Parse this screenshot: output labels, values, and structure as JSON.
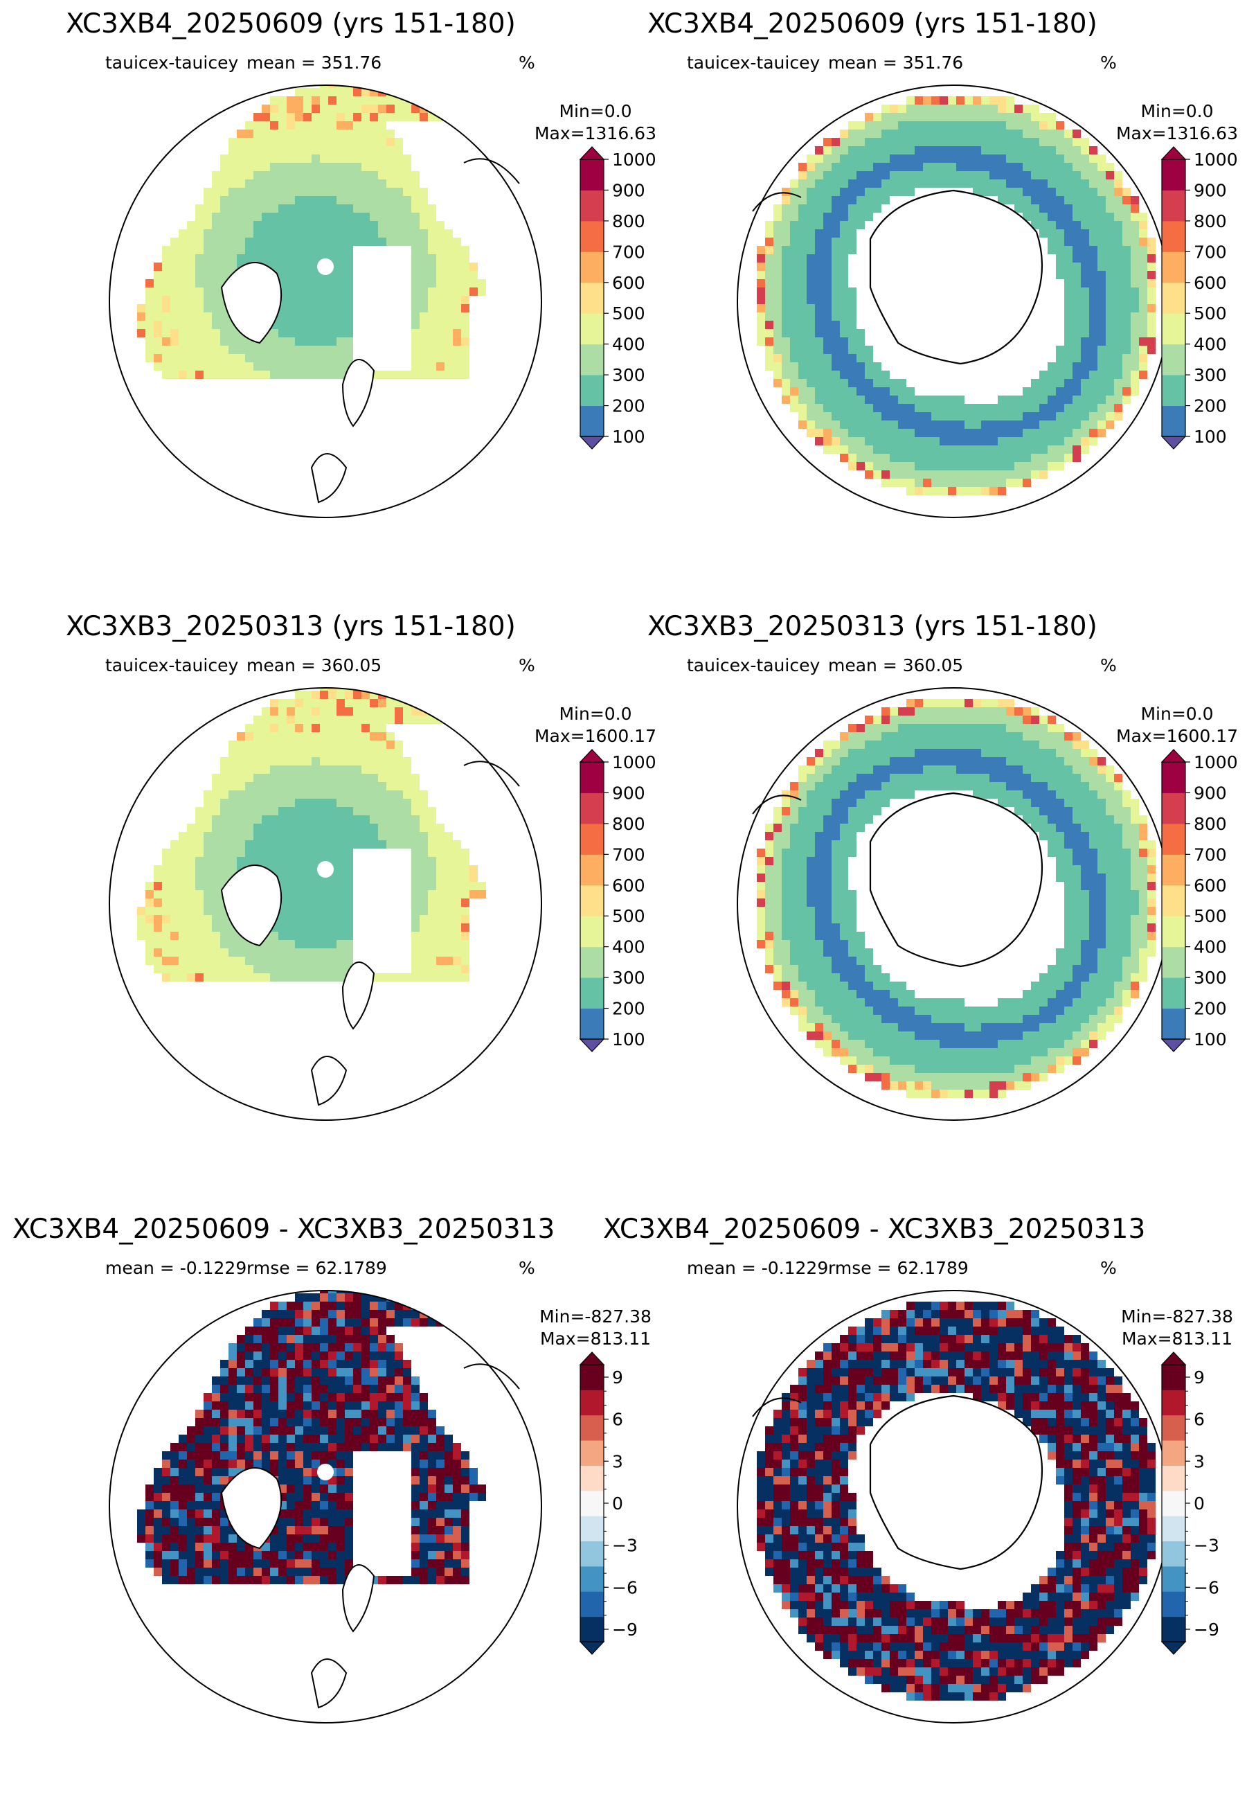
{
  "panels": [
    {
      "title": "XC3XB4_20250609 (yrs 151-180)",
      "left_label": "tauicex-tauicey",
      "stat_label": "mean = 351.76",
      "units": "%",
      "min_label": "Min=0.0",
      "max_label": "Max=1316.63",
      "hemisphere": "north",
      "colormap": "RdYlBu_r-diverging-discrete",
      "colorbar_ticks": [
        "1000",
        "900",
        "800",
        "700",
        "600",
        "500",
        "400",
        "300",
        "200",
        "100"
      ]
    },
    {
      "title": "XC3XB4_20250609 (yrs 151-180)",
      "left_label": "tauicex-tauicey",
      "stat_label": "mean = 351.76",
      "units": "%",
      "min_label": "Min=0.0",
      "max_label": "Max=1316.63",
      "hemisphere": "south",
      "colormap": "RdYlBu_r-diverging-discrete",
      "colorbar_ticks": [
        "1000",
        "900",
        "800",
        "700",
        "600",
        "500",
        "400",
        "300",
        "200",
        "100"
      ]
    },
    {
      "title": "XC3XB3_20250313 (yrs 151-180)",
      "left_label": "tauicex-tauicey",
      "stat_label": "mean = 360.05",
      "units": "%",
      "min_label": "Min=0.0",
      "max_label": "Max=1600.17",
      "hemisphere": "north",
      "colormap": "RdYlBu_r-diverging-discrete",
      "colorbar_ticks": [
        "1000",
        "900",
        "800",
        "700",
        "600",
        "500",
        "400",
        "300",
        "200",
        "100"
      ]
    },
    {
      "title": "XC3XB3_20250313 (yrs 151-180)",
      "left_label": "tauicex-tauicey",
      "stat_label": "mean = 360.05",
      "units": "%",
      "min_label": "Min=0.0",
      "max_label": "Max=1600.17",
      "hemisphere": "south",
      "colormap": "RdYlBu_r-diverging-discrete",
      "colorbar_ticks": [
        "1000",
        "900",
        "800",
        "700",
        "600",
        "500",
        "400",
        "300",
        "200",
        "100"
      ]
    },
    {
      "title": "XC3XB4_20250609 - XC3XB3_20250313",
      "left_label": "mean = -0.1229",
      "stat_label": "rmse = 62.1789",
      "units": "%",
      "min_label": "Min=-827.38",
      "max_label": "Max=813.11",
      "hemisphere": "north",
      "colormap": "RdBu_r-diverging-discrete",
      "colorbar_ticks": [
        "9",
        "6",
        "3",
        "0",
        "−3",
        "−6",
        "−9"
      ]
    },
    {
      "title": "XC3XB4_20250609 - XC3XB3_20250313",
      "left_label": "mean = -0.1229",
      "stat_label": "rmse = 62.1789",
      "units": "%",
      "min_label": "Min=-827.38",
      "max_label": "Max=813.11",
      "hemisphere": "south",
      "colormap": "RdBu_r-diverging-discrete",
      "colorbar_ticks": [
        "9",
        "6",
        "3",
        "0",
        "−3",
        "−6",
        "−9"
      ]
    }
  ],
  "colors": {
    "seq": [
      "#3a7bb8",
      "#66c2a5",
      "#abdda4",
      "#e6f598",
      "#fee08b",
      "#fdae61",
      "#f46d43",
      "#d53e4f",
      "#9e0142"
    ],
    "seq_under": "#5e4fa2",
    "div": [
      "#053061",
      "#2166ac",
      "#4393c3",
      "#92c5de",
      "#d1e5f0",
      "#f7f7f7",
      "#fddbc7",
      "#f4a582",
      "#d6604d",
      "#b2182b",
      "#67001f"
    ]
  }
}
